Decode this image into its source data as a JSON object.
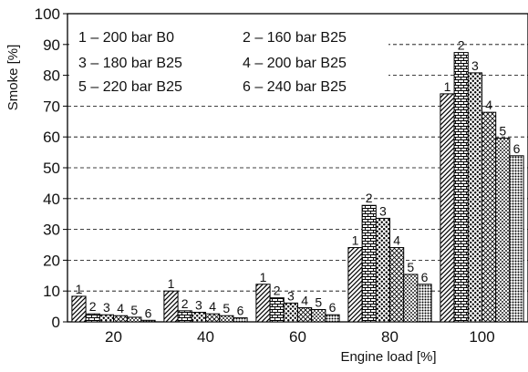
{
  "chart_data": {
    "type": "bar",
    "title": "",
    "xlabel": "Engine load [%]",
    "ylabel": "Smoke [%]",
    "ylim": [
      0,
      100
    ],
    "yticks": [
      0,
      10,
      20,
      30,
      40,
      50,
      60,
      70,
      80,
      90,
      100
    ],
    "grid": "horizontal dashed",
    "legend_position": "top-left",
    "categories": [
      "20",
      "40",
      "60",
      "80",
      "100"
    ],
    "series": [
      {
        "id": "1",
        "name": "1 – 200 bar B0",
        "legend_label": "1 – 200 bar B0",
        "pattern": "diagonal-hatch",
        "values": [
          8.3,
          10.0,
          12.2,
          24.1,
          74.0
        ]
      },
      {
        "id": "2",
        "name": "2 – 160 bar B25",
        "legend_label": "2 – 160 bar B25",
        "pattern": "brick",
        "values": [
          2.6,
          3.6,
          7.8,
          37.8,
          87.4
        ]
      },
      {
        "id": "3",
        "name": "3 – 180 bar B25",
        "legend_label": "3 – 180 bar B25",
        "pattern": "dots",
        "values": [
          2.3,
          3.1,
          6.1,
          33.6,
          80.8
        ]
      },
      {
        "id": "4",
        "name": "4 – 200 bar B25",
        "legend_label": "4 – 200 bar B25",
        "pattern": "cross-hatch",
        "values": [
          2.0,
          2.6,
          4.6,
          24.1,
          68.0
        ]
      },
      {
        "id": "5",
        "name": "5 – 220 bar B25",
        "legend_label": "5 – 220 bar B25",
        "pattern": "checker",
        "values": [
          1.5,
          2.0,
          4.0,
          15.4,
          59.6
        ]
      },
      {
        "id": "6",
        "name": "6 – 240 bar B25",
        "legend_label": "6 – 240 bar B25",
        "pattern": "dense-dots",
        "values": [
          0.5,
          1.3,
          2.3,
          12.2,
          53.9
        ]
      }
    ]
  }
}
